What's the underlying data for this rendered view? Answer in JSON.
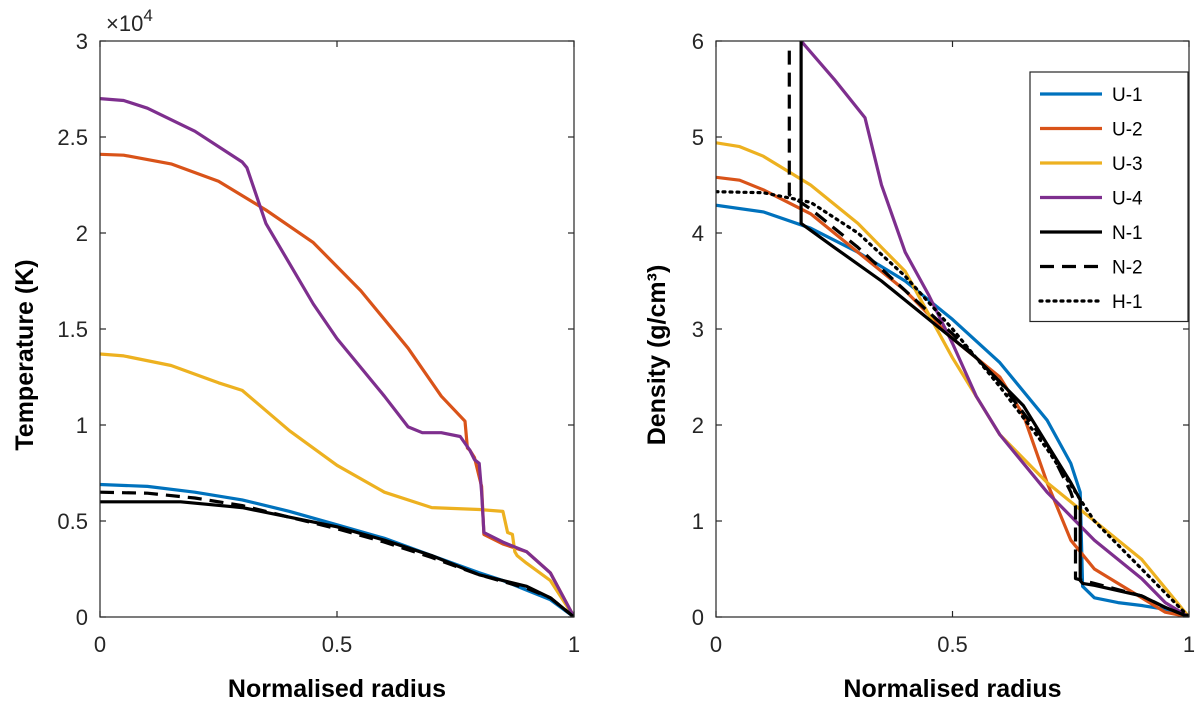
{
  "chart_data": [
    {
      "type": "line",
      "id": "temperature",
      "xlabel": "Normalised radius",
      "ylabel": "Temperature (K)",
      "xlim": [
        0,
        1
      ],
      "ylim": [
        0,
        30000
      ],
      "xticks": [
        0,
        0.5,
        1
      ],
      "xtick_labels": [
        "0",
        "0.5",
        "1"
      ],
      "yticks": [
        0,
        5000,
        10000,
        15000,
        20000,
        25000,
        30000
      ],
      "ytick_labels": [
        "0",
        "0.5",
        "1",
        "1.5",
        "2",
        "2.5",
        "3"
      ],
      "scale_label": {
        "base": "×10",
        "exponent": "4"
      },
      "series": [
        {
          "name": "U-1",
          "color": "#0072BD",
          "dash": "solid",
          "x": [
            0,
            0.1,
            0.2,
            0.3,
            0.4,
            0.5,
            0.6,
            0.7,
            0.8,
            0.85,
            0.9,
            0.95,
            1.0
          ],
          "y": [
            6900,
            6800,
            6500,
            6100,
            5500,
            4800,
            4100,
            3200,
            2300,
            1900,
            1400,
            900,
            0
          ]
        },
        {
          "name": "U-2",
          "color": "#D95319",
          "dash": "solid",
          "x": [
            0,
            0.05,
            0.15,
            0.25,
            0.35,
            0.45,
            0.55,
            0.65,
            0.72,
            0.77,
            0.775,
            0.78,
            0.79,
            0.8,
            0.805,
            0.81,
            0.85,
            0.9,
            0.95,
            1.0
          ],
          "y": [
            24100,
            24050,
            23600,
            22700,
            21200,
            19500,
            17000,
            14000,
            11500,
            10200,
            8800,
            8700,
            8300,
            7300,
            6800,
            4300,
            3800,
            3400,
            2300,
            0
          ]
        },
        {
          "name": "U-3",
          "color": "#EDB120",
          "dash": "solid",
          "x": [
            0,
            0.05,
            0.15,
            0.25,
            0.3,
            0.4,
            0.5,
            0.6,
            0.7,
            0.8,
            0.85,
            0.86,
            0.87,
            0.875,
            0.88,
            0.9,
            0.95,
            1.0
          ],
          "y": [
            13700,
            13600,
            13100,
            12200,
            11800,
            9700,
            7900,
            6500,
            5700,
            5600,
            5500,
            4400,
            4300,
            3400,
            3200,
            2800,
            1900,
            0
          ]
        },
        {
          "name": "U-4",
          "color": "#7E2F8E",
          "dash": "solid",
          "x": [
            0,
            0.05,
            0.1,
            0.2,
            0.3,
            0.31,
            0.35,
            0.4,
            0.45,
            0.5,
            0.55,
            0.6,
            0.65,
            0.68,
            0.72,
            0.76,
            0.78,
            0.79,
            0.8,
            0.805,
            0.81,
            0.85,
            0.9,
            0.95,
            1.0
          ],
          "y": [
            27000,
            26900,
            26500,
            25300,
            23700,
            23400,
            20500,
            18400,
            16300,
            14500,
            13000,
            11500,
            9900,
            9600,
            9600,
            9400,
            8700,
            8200,
            8000,
            6500,
            4400,
            3900,
            3400,
            2300,
            0
          ]
        },
        {
          "name": "N-1",
          "color": "#000000",
          "dash": "solid",
          "x": [
            0,
            0.17,
            0.3,
            0.4,
            0.5,
            0.6,
            0.7,
            0.8,
            0.9,
            0.95,
            1.0
          ],
          "y": [
            6000,
            6000,
            5700,
            5200,
            4700,
            4000,
            3200,
            2200,
            1600,
            1000,
            0
          ]
        },
        {
          "name": "N-2",
          "color": "#000000",
          "dash": "dashed",
          "x": [
            0,
            0.1,
            0.2,
            0.3,
            0.4,
            0.5,
            0.6,
            0.7,
            0.8,
            0.9,
            0.95,
            1.0
          ],
          "y": [
            6500,
            6450,
            6200,
            5800,
            5200,
            4600,
            3900,
            3100,
            2200,
            1500,
            1000,
            0
          ]
        }
      ]
    },
    {
      "type": "line",
      "id": "density",
      "xlabel": "Normalised radius",
      "ylabel": "Density (g/cm³)",
      "xlim": [
        0,
        1
      ],
      "ylim": [
        0,
        6
      ],
      "xticks": [
        0,
        0.5,
        1
      ],
      "xtick_labels": [
        "0",
        "0.5",
        "1"
      ],
      "yticks": [
        0,
        1,
        2,
        3,
        4,
        5,
        6
      ],
      "ytick_labels": [
        "0",
        "1",
        "2",
        "3",
        "4",
        "5",
        "6"
      ],
      "legend_position": "top-right",
      "series": [
        {
          "name": "U-1",
          "color": "#0072BD",
          "dash": "solid",
          "x": [
            0,
            0.1,
            0.2,
            0.3,
            0.4,
            0.5,
            0.6,
            0.7,
            0.75,
            0.77,
            0.775,
            0.8,
            0.85,
            0.9,
            0.95,
            1.0
          ],
          "y": [
            4.29,
            4.22,
            4.05,
            3.8,
            3.5,
            3.1,
            2.65,
            2.05,
            1.6,
            1.3,
            0.32,
            0.2,
            0.15,
            0.12,
            0.08,
            0
          ]
        },
        {
          "name": "U-2",
          "color": "#D95319",
          "dash": "solid",
          "x": [
            0,
            0.05,
            0.1,
            0.2,
            0.3,
            0.4,
            0.5,
            0.6,
            0.65,
            0.7,
            0.75,
            0.8,
            0.85,
            0.9,
            0.95,
            1.0
          ],
          "y": [
            4.58,
            4.55,
            4.45,
            4.2,
            3.8,
            3.4,
            2.9,
            2.5,
            2.1,
            1.4,
            0.8,
            0.5,
            0.35,
            0.2,
            0.05,
            0
          ]
        },
        {
          "name": "U-3",
          "color": "#EDB120",
          "dash": "solid",
          "x": [
            0,
            0.05,
            0.1,
            0.2,
            0.3,
            0.4,
            0.5,
            0.6,
            0.7,
            0.8,
            0.9,
            0.95,
            1.0
          ],
          "y": [
            4.94,
            4.9,
            4.8,
            4.5,
            4.1,
            3.6,
            2.7,
            1.9,
            1.4,
            1.0,
            0.6,
            0.3,
            0
          ]
        },
        {
          "name": "U-4",
          "color": "#7E2F8E",
          "dash": "solid",
          "x": [
            0.18,
            0.25,
            0.315,
            0.35,
            0.4,
            0.45,
            0.5,
            0.55,
            0.6,
            0.7,
            0.8,
            0.9,
            0.95,
            1.0
          ],
          "y": [
            6.0,
            5.6,
            5.2,
            4.5,
            3.8,
            3.35,
            2.85,
            2.3,
            1.9,
            1.3,
            0.8,
            0.4,
            0.15,
            0
          ]
        },
        {
          "name": "N-1",
          "color": "#000000",
          "dash": "solid",
          "x": [
            0.18,
            0.18,
            0.25,
            0.35,
            0.45,
            0.55,
            0.65,
            0.7,
            0.75,
            0.77,
            0.77,
            0.775,
            0.8,
            0.9,
            0.95,
            1.0
          ],
          "y": [
            6.0,
            4.1,
            3.85,
            3.5,
            3.1,
            2.7,
            2.2,
            1.8,
            1.4,
            1.22,
            0.38,
            0.35,
            0.33,
            0.22,
            0.1,
            0
          ]
        },
        {
          "name": "N-2",
          "color": "#000000",
          "dash": "dashed",
          "x": [
            0.155,
            0.155,
            0.2,
            0.3,
            0.4,
            0.5,
            0.6,
            0.7,
            0.75,
            0.76,
            0.76,
            0.8,
            0.9,
            0.95,
            1.0
          ],
          "y": [
            5.9,
            4.4,
            4.25,
            3.85,
            3.4,
            2.95,
            2.45,
            1.8,
            1.3,
            1.15,
            0.4,
            0.35,
            0.22,
            0.1,
            0
          ]
        },
        {
          "name": "H-1",
          "color": "#000000",
          "dash": "dotted",
          "x": [
            0,
            0.1,
            0.2,
            0.3,
            0.4,
            0.5,
            0.6,
            0.7,
            0.8,
            0.9,
            0.95,
            1.0
          ],
          "y": [
            4.43,
            4.42,
            4.32,
            4.0,
            3.55,
            3.0,
            2.4,
            1.75,
            1.0,
            0.5,
            0.25,
            0
          ]
        }
      ]
    }
  ]
}
